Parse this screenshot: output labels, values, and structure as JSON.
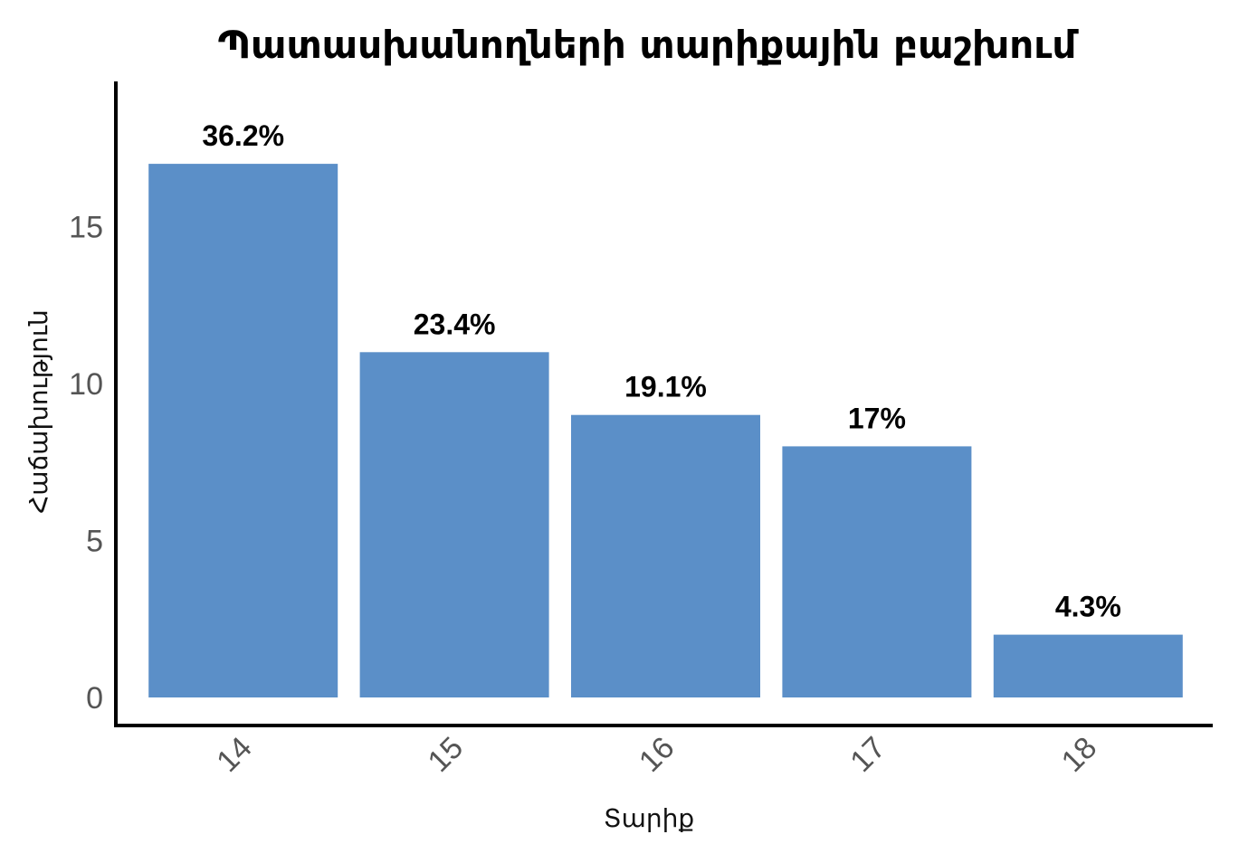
{
  "chart_data": {
    "type": "bar",
    "title": "Պատասխանողների տարիքային բաշխում",
    "xlabel": "Տարիք",
    "ylabel": "Հաճախություն",
    "categories": [
      "14",
      "15",
      "16",
      "17",
      "18"
    ],
    "values": [
      17,
      11,
      9,
      8,
      2
    ],
    "data_labels": [
      "36.2%",
      "23.4%",
      "19.1%",
      "17%",
      "4.3%"
    ],
    "yticks": [
      "0",
      "5",
      "10",
      "15"
    ],
    "ylim": [
      0,
      19
    ],
    "grid": false,
    "bar_color": "#5b8fc8"
  }
}
